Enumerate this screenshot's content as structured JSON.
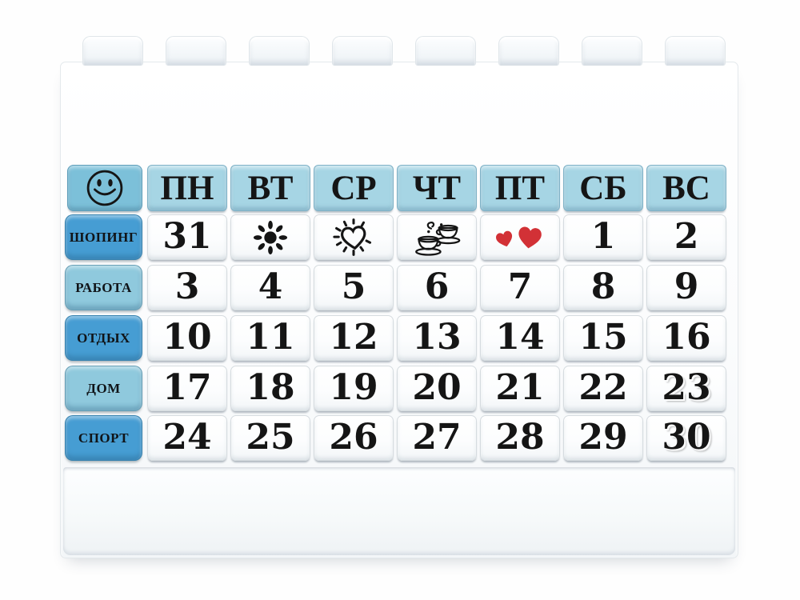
{
  "photo": {
    "subject": "white toy-brick perpetual desk calendar with Russian labels"
  },
  "calendar": {
    "corner_icon": "smiley-icon",
    "day_headers": [
      "ПН",
      "ВТ",
      "СР",
      "ЧТ",
      "ПТ",
      "СБ",
      "ВС"
    ],
    "category_rows": [
      {
        "label": "ШОПИНГ",
        "tone": "dark",
        "cells": [
          {
            "text": "31"
          },
          {
            "icon": "sun-icon"
          },
          {
            "icon": "sparkling-heart-icon"
          },
          {
            "icon": "coffee-cups-icon"
          },
          {
            "icon": "two-hearts-icon"
          },
          {
            "text": "1"
          },
          {
            "text": "2"
          }
        ]
      },
      {
        "label": "РАБОТА",
        "tone": "light",
        "cells": [
          {
            "text": "3"
          },
          {
            "text": "4"
          },
          {
            "text": "5"
          },
          {
            "text": "6"
          },
          {
            "text": "7"
          },
          {
            "text": "8"
          },
          {
            "text": "9"
          }
        ]
      },
      {
        "label": "ОТДЫХ",
        "tone": "dark",
        "cells": [
          {
            "text": "10"
          },
          {
            "text": "11"
          },
          {
            "text": "12"
          },
          {
            "text": "13"
          },
          {
            "text": "14"
          },
          {
            "text": "15"
          },
          {
            "text": "16"
          }
        ]
      },
      {
        "label": "ДОМ",
        "tone": "light",
        "cells": [
          {
            "text": "17"
          },
          {
            "text": "18"
          },
          {
            "text": "19"
          },
          {
            "text": "20"
          },
          {
            "text": "21"
          },
          {
            "text": "22"
          },
          {
            "text": "23",
            "embossed": true
          }
        ]
      },
      {
        "label": "СПОРТ",
        "tone": "dark",
        "cells": [
          {
            "text": "24"
          },
          {
            "text": "25"
          },
          {
            "text": "26"
          },
          {
            "text": "27"
          },
          {
            "text": "28"
          },
          {
            "text": "29"
          },
          {
            "text": "30",
            "embossed": true
          }
        ]
      }
    ],
    "colors": {
      "header_blue": "#a6d5e4",
      "corner_blue": "#7cc0d9",
      "label_dark_blue": "#469dd3",
      "label_light_blue": "#8fc9dd",
      "heart_red": "#d23136",
      "ink": "#151515"
    }
  }
}
